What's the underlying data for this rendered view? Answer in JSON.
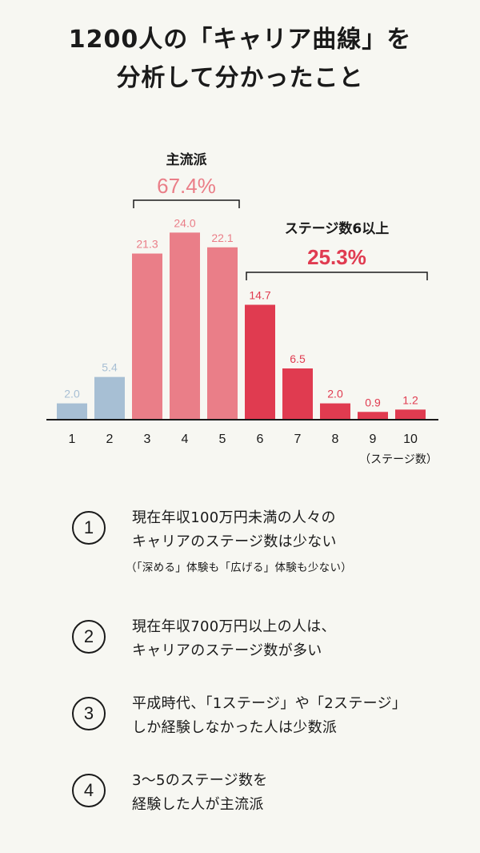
{
  "title": {
    "line1": "1200人の「キャリア曲線」を",
    "line2": "分析して分かったこと"
  },
  "colors": {
    "low": "#a7bfd4",
    "mid": "#ea7e88",
    "high": "#e03b50",
    "text": "#1a1a1a",
    "background": "#f7f7f2"
  },
  "chart_data": {
    "type": "bar",
    "categories": [
      "1",
      "2",
      "3",
      "4",
      "5",
      "6",
      "7",
      "8",
      "9",
      "10"
    ],
    "values": [
      2.0,
      5.4,
      21.3,
      24.0,
      22.1,
      14.7,
      6.5,
      2.0,
      0.9,
      1.2
    ],
    "value_labels": [
      "2.0",
      "5.4",
      "21.3",
      "24.0",
      "22.1",
      "14.7",
      "6.5",
      "2.0",
      "0.9",
      "1.2"
    ],
    "bar_groups": [
      "low",
      "low",
      "mid",
      "mid",
      "mid",
      "high",
      "high",
      "high",
      "high",
      "high"
    ],
    "xlabel": "（ステージ数）",
    "ylabel": "",
    "ylim": [
      0,
      26
    ],
    "grid": false,
    "annotations": [
      {
        "label": "主流派",
        "value": "67.4%",
        "from": "3",
        "to": "5",
        "color": "mid"
      },
      {
        "label": "ステージ数6以上",
        "value": "25.3%",
        "from": "6",
        "to": "10",
        "color": "high"
      }
    ]
  },
  "points": [
    {
      "number": "1",
      "line1": "現在年収100万円未満の人々の",
      "line2": "キャリアのステージ数は少ない",
      "note": "（「深める」体験も「広げる」体験も少ない）"
    },
    {
      "number": "2",
      "line1": "現在年収700万円以上の人は、",
      "line2": "キャリアのステージ数が多い",
      "note": ""
    },
    {
      "number": "3",
      "line1": "平成時代、「1ステージ」や「2ステージ」",
      "line2": "しか経験しなかった人は少数派",
      "note": ""
    },
    {
      "number": "4",
      "line1": "3〜5のステージ数を",
      "line2": "経験した人が主流派",
      "note": ""
    }
  ]
}
